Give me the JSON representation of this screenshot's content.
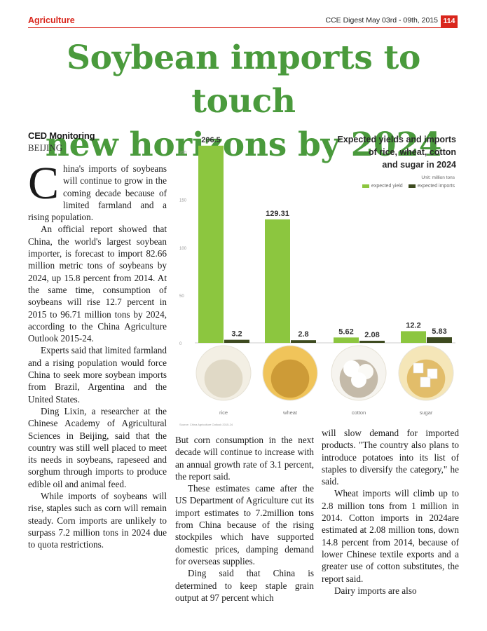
{
  "header": {
    "section": "Agriculture",
    "publication": "CCE Digest  May 03rd - 09th, 2015",
    "page": "114"
  },
  "headline": {
    "line1": "Soybean imports to touch",
    "line2": "new horizons by 2024"
  },
  "byline": "CED Monitoring",
  "dateline": "BEIJING",
  "article": {
    "dropcap": "C",
    "col1": [
      "hina's imports of soybeans will continue to grow in the coming decade because of limited farmland and a rising population.",
      "An official report showed that China, the world's largest soybean importer, is forecast to import 82.66 million metric tons of soybeans by 2024, up 15.8 percent from 2014. At the same time, consumption of soybeans will rise 12.7 percent in 2015 to 96.71 million tons by 2024, according to the China Agriculture Outlook 2015-24.",
      "Experts said that limited farmland and a rising population would force China to seek more soybean imports from Brazil, Argentina and the United States.",
      "Ding Lixin, a researcher at the Chinese Academy of Agricultural Sciences in Beijing, said that the country was still well placed to meet its needs in soybeans, rapeseed and sorghum through imports to produce edible oil and animal feed.",
      "While imports of soybeans will rise, staples such as corn will remain steady. Corn imports are unlikely to surpass 7.2 million tons in 2024 due to quota restrictions."
    ],
    "col2": [
      "But corn consumption in the next decade will continue to increase with an annual growth rate of 3.1 percent, the report said.",
      "These estimates came after the US Department of Agriculture cut its import estimates to 7.2million tons from China because of the rising stockpiles which have supported domestic prices, damping demand for overseas supplies.",
      "Ding said that China is determined to keep staple grain output at 97 percent which"
    ],
    "col3": [
      "will slow demand for imported products. \"The country also plans to introduce potatoes into its list of staples to diversify the category,\" he said.",
      "Wheat imports will climb up to 2.8 million tons from 1 million in 2014. Cotton imports in 2024are estimated at 2.08 million tons, down 14.8 percent from 2014, because of lower Chinese textile exports and a greater use of cotton substitutes, the report said.",
      "Dairy imports are also"
    ]
  },
  "chart_data": {
    "type": "bar",
    "title_lines": [
      "Expected yields and imports",
      "of rice, wheat, cotton",
      "and sugar in 2024"
    ],
    "unit": "Unit: million tons",
    "categories": [
      "rice",
      "wheat",
      "cotton",
      "sugar"
    ],
    "series": [
      {
        "name": "expected yield",
        "values": [
          206.5,
          129.31,
          5.62,
          12.2
        ],
        "labels": [
          "206.5",
          "129.31",
          "5.62",
          "12.2"
        ]
      },
      {
        "name": "expected imports",
        "values": [
          3.2,
          2.8,
          2.08,
          5.83
        ],
        "labels": [
          "3.2",
          "2.8",
          "2.08",
          "5.83"
        ]
      }
    ],
    "yticks": [
      "0",
      "50",
      "100",
      "150",
      "200"
    ],
    "ylim": [
      0,
      210
    ],
    "legend_position": "top-right",
    "colors": {
      "yield": "#8cc63f",
      "imports": "#3d4a1f"
    },
    "grid": false,
    "source_text": "Source: China Agriculture Outlook 2015-24"
  }
}
